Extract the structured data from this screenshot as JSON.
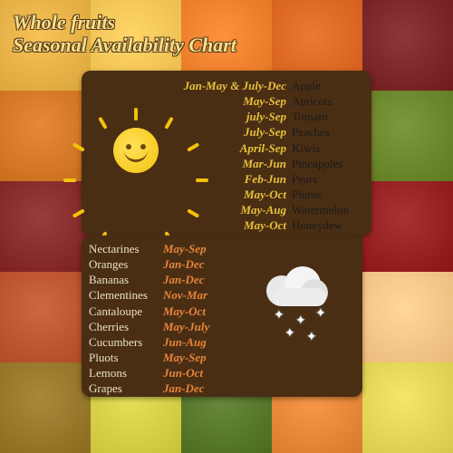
{
  "title": {
    "line1": "Whole fruits",
    "line2": "Seasonal Availability Chart"
  },
  "colors": {
    "panel_bg": "#4a2e14",
    "title_text": "#f5e08a",
    "months_top": "#e7c03a",
    "months_bot": "#e7843a",
    "fruits_top": "#1a1a1a",
    "fruits_bot": "#eae0c8"
  },
  "bg_tiles": [
    "#d9a53b",
    "#e8b84a",
    "#e0731f",
    "#cf5a18",
    "#6e1a1a",
    "#c76b1a",
    "#b44e14",
    "#4a2e14",
    "#4a2e14",
    "#5f7a1e",
    "#7a1e1e",
    "#4a2e14",
    "#4a2e14",
    "#4a2e14",
    "#8a1414",
    "#b04824",
    "#4a2e14",
    "#4a2e14",
    "#4a2e14",
    "#e9b97a",
    "#8a6b1e",
    "#c8c23a",
    "#4a6b1e",
    "#d97a2a",
    "#d7c84a"
  ],
  "top_rows": [
    {
      "months": "Jan-May & July-Dec",
      "fruit": "Apple"
    },
    {
      "months": "May-Sep",
      "fruit": "Apricots"
    },
    {
      "months": "july-Sep",
      "fruit": "Tomato"
    },
    {
      "months": "July-Sep",
      "fruit": "Peaches"
    },
    {
      "months": "April-Sep",
      "fruit": "Kiwis"
    },
    {
      "months": "Mar-Jun",
      "fruit": "Pineapples"
    },
    {
      "months": "Feb-Jun",
      "fruit": "Pears"
    },
    {
      "months": "May-Oct",
      "fruit": "Plums"
    },
    {
      "months": "May-Aug",
      "fruit": "Watermelon"
    },
    {
      "months": "May-Oct",
      "fruit": "Honeydew"
    }
  ],
  "bot_rows": [
    {
      "fruit": "Nectarines",
      "months": "May-Sep"
    },
    {
      "fruit": "Oranges",
      "months": "Jan-Dec"
    },
    {
      "fruit": "Bananas",
      "months": "Jan-Dec"
    },
    {
      "fruit": "Clementines",
      "months": "Nov-Mar"
    },
    {
      "fruit": "Cantaloupe",
      "months": "May-Oct"
    },
    {
      "fruit": "Cherries",
      "months": "May-July"
    },
    {
      "fruit": "Cucumbers",
      "months": "Jun-Aug"
    },
    {
      "fruit": "Pluots",
      "months": "May-Sep"
    },
    {
      "fruit": "Lemons",
      "months": "Jun-Oct"
    },
    {
      "fruit": "Grapes",
      "months": "Jan-Dec"
    }
  ]
}
